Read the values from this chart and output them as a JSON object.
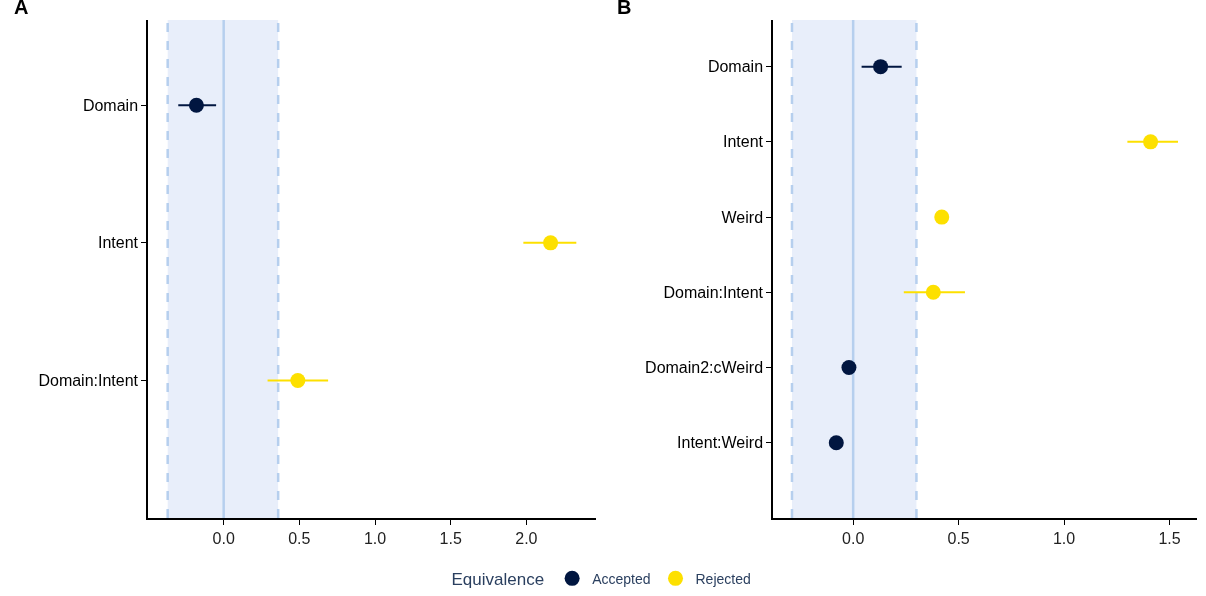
{
  "chart_data": [
    {
      "type": "scatter",
      "title": "A",
      "orientation": "horizontal",
      "categories": [
        "Domain",
        "Intent",
        "Domain:Intent"
      ],
      "xlim": [
        -0.5,
        2.46
      ],
      "xticks": [
        {
          "value": 0,
          "label": "0.0"
        },
        {
          "value": 0.5,
          "label": "0.5"
        },
        {
          "value": 1,
          "label": "1.0"
        },
        {
          "value": 1.5,
          "label": "1.5"
        },
        {
          "value": 2,
          "label": "2.0"
        }
      ],
      "marker": "circle",
      "legend": "bottom",
      "legend_title": "Equivalence",
      "grid": false,
      "series": [
        {
          "name": "Accepted",
          "color": "#011640",
          "values": [
            -0.18,
            null,
            null
          ],
          "errors": [
            [
              -0.3,
              -0.05
            ],
            null,
            null
          ]
        },
        {
          "name": "Rejected",
          "color": "#fde000",
          "values": [
            null,
            2.16,
            0.49
          ],
          "errors": [
            null,
            [
              1.98,
              2.33
            ],
            [
              0.29,
              0.69
            ]
          ]
        }
      ],
      "bands": [
        {
          "axis": "x",
          "from": -0.37,
          "to": 0.36,
          "color": "#e8eefa"
        }
      ],
      "ref_lines": [
        {
          "axis": "x",
          "value": 0,
          "color": "#b6cfee",
          "line_style": "solid"
        },
        {
          "axis": "x",
          "value": -0.37,
          "color": "#b6cfee",
          "line_style": "dashed"
        },
        {
          "axis": "x",
          "value": 0.36,
          "color": "#b6cfee",
          "line_style": "dashed"
        }
      ]
    },
    {
      "type": "scatter",
      "title": "B",
      "orientation": "horizontal",
      "categories": [
        "Domain",
        "Intent",
        "Weird",
        "Domain:Intent",
        "Domain2:cWeird",
        "Intent:Weird"
      ],
      "xlim": [
        -0.38,
        1.63
      ],
      "xticks": [
        {
          "value": 0,
          "label": "0.0"
        },
        {
          "value": 0.5,
          "label": "0.5"
        },
        {
          "value": 1,
          "label": "1.0"
        },
        {
          "value": 1.5,
          "label": "1.5"
        }
      ],
      "marker": "circle",
      "legend": "bottom",
      "grid": false,
      "series": [
        {
          "name": "Accepted",
          "color": "#011640",
          "values": [
            0.13,
            null,
            null,
            null,
            -0.02,
            -0.08
          ],
          "errors": [
            [
              0.04,
              0.23
            ],
            null,
            null,
            null,
            null,
            null
          ]
        },
        {
          "name": "Rejected",
          "color": "#fde000",
          "values": [
            null,
            1.41,
            0.42,
            0.38,
            null,
            null
          ],
          "errors": [
            null,
            [
              1.3,
              1.54
            ],
            null,
            [
              0.24,
              0.53
            ],
            null,
            null
          ]
        }
      ],
      "bands": [
        {
          "axis": "x",
          "from": -0.29,
          "to": 0.3,
          "color": "#e8eefa"
        }
      ],
      "ref_lines": [
        {
          "axis": "x",
          "value": 0,
          "color": "#b6cfee",
          "line_style": "solid"
        },
        {
          "axis": "x",
          "value": -0.29,
          "color": "#b6cfee",
          "line_style": "dashed"
        },
        {
          "axis": "x",
          "value": 0.3,
          "color": "#b6cfee",
          "line_style": "dashed"
        }
      ]
    }
  ]
}
